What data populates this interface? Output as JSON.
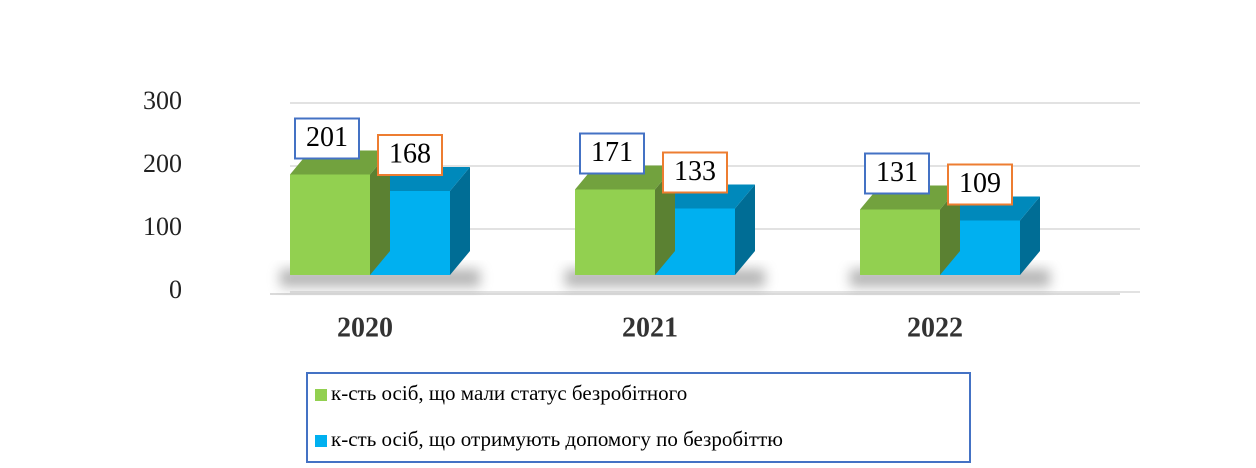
{
  "chart_data": {
    "type": "bar3d",
    "categories": [
      "2020",
      "2021",
      "2022"
    ],
    "series": [
      {
        "name": "к-сть осіб, що мали статус безробітного",
        "color": "#92d050",
        "label_border": "#4472c4",
        "values": [
          201,
          171,
          131
        ]
      },
      {
        "name": "к-сть осіб, що отримують допомогу по безробіттю",
        "color": "#00b0f0",
        "label_border": "#ed7d31",
        "values": [
          168,
          133,
          109
        ]
      }
    ],
    "ylim": [
      0,
      300
    ],
    "yticks": [
      0,
      100,
      200,
      300
    ],
    "grid": true,
    "legend": "bottom"
  }
}
